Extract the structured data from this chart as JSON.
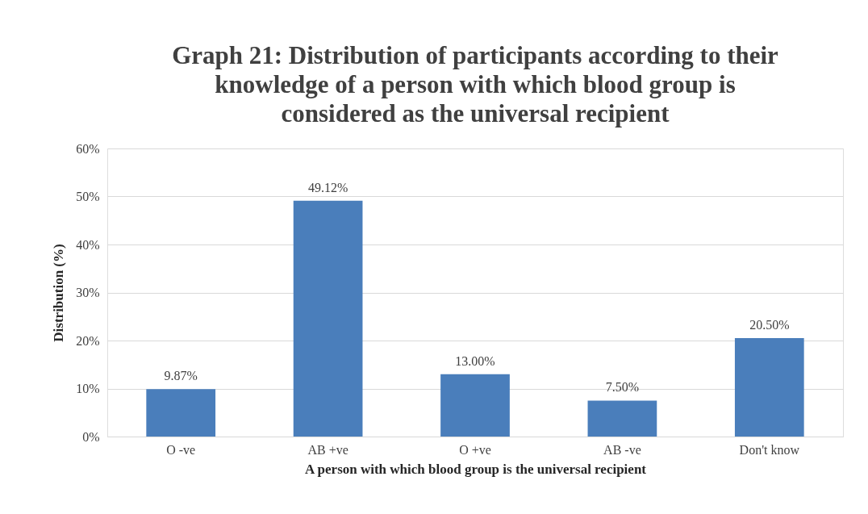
{
  "chart_data": {
    "type": "bar",
    "title": "Graph 21: Distribution of participants according to their\nknowledge of a person with which blood group is\nconsidered as the universal recipient",
    "xlabel": "A person with which blood group is the universal recipient",
    "ylabel": "Distribution (%)",
    "categories": [
      "O -ve",
      "AB +ve",
      "O +ve",
      "AB -ve",
      "Don't know"
    ],
    "values": [
      9.87,
      49.12,
      13.0,
      7.5,
      20.5
    ],
    "value_labels": [
      "9.87%",
      "49.12%",
      "13.00%",
      "7.50%",
      "20.50%"
    ],
    "color": "#4a7ebb",
    "ylim": [
      0,
      60
    ],
    "yticks": [
      {
        "value": 0,
        "label": "0%"
      },
      {
        "value": 10,
        "label": "10%"
      },
      {
        "value": 20,
        "label": "20%"
      },
      {
        "value": 30,
        "label": "30%"
      },
      {
        "value": 40,
        "label": "40%"
      },
      {
        "value": 50,
        "label": "50%"
      },
      {
        "value": 60,
        "label": "60%"
      }
    ],
    "grid": "y"
  }
}
